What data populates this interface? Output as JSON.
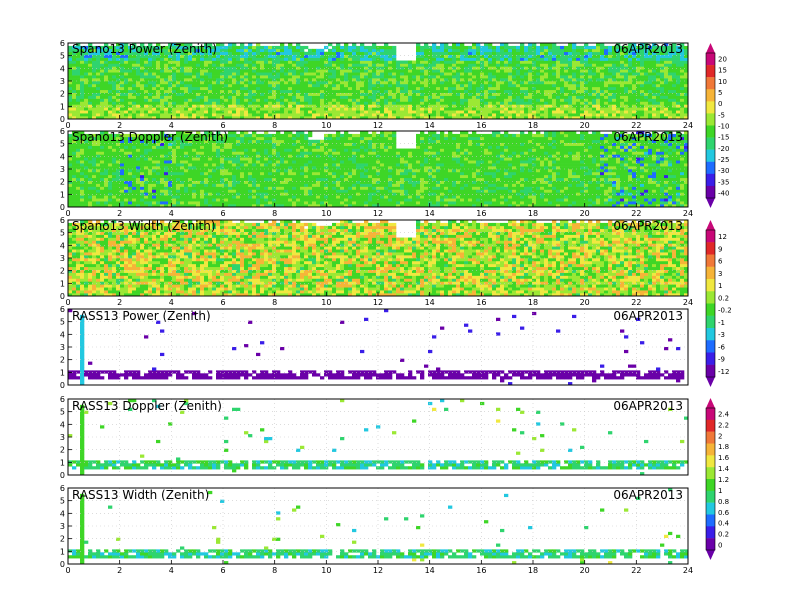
{
  "figure": {
    "panels": [
      {
        "title": "Spano13 Power (Zenith)",
        "date": "06APR2013"
      },
      {
        "title": "Spano13 Doppler (Zenith)",
        "date": "06APR2013"
      },
      {
        "title": "Spano13 Width (Zenith)",
        "date": "06APR2013"
      },
      {
        "title": "RASS13 Power (Zenith)",
        "date": "06APR2013"
      },
      {
        "title": "RASS13 Doppler (Zenith)",
        "date": "06APR2013"
      },
      {
        "title": "RASS13 Width (Zenith)",
        "date": "06APR2013"
      }
    ],
    "colorbars": [
      {
        "labels": [
          "20",
          "15",
          "10",
          "5",
          "0",
          "-5",
          "-10",
          "-15",
          "-20",
          "-25",
          "-30",
          "-35",
          "-40"
        ]
      },
      {
        "labels": [
          "12",
          "9",
          "6",
          "3",
          "1",
          "0.2",
          "-0.2",
          "-1",
          "-3",
          "-6",
          "-9",
          "-12"
        ]
      },
      {
        "labels": [
          "2.4",
          "2.2",
          "2",
          "1.8",
          "1.6",
          "1.4",
          "1.2",
          "1",
          "0.8",
          "0.6",
          "0.4",
          "0.2",
          "0"
        ]
      }
    ],
    "colors": {
      "scale": [
        "#6a00a8",
        "#3a1ee8",
        "#1e6cff",
        "#22c8e0",
        "#2fd46e",
        "#3ed626",
        "#9be834",
        "#f0e840",
        "#f6b438",
        "#f07838",
        "#e02828",
        "#c80878"
      ],
      "frame": "#000000",
      "grid": "#c8c8c8"
    }
  },
  "chart_data": [
    {
      "type": "heatmap",
      "title": "Spano13 Power (Zenith)",
      "annotation": "06APR2013",
      "xlim": [
        0,
        24
      ],
      "ylim": [
        0,
        6
      ],
      "xticks": [
        "0",
        "2",
        "4",
        "6",
        "8",
        "10",
        "12",
        "14",
        "16",
        "18",
        "20",
        "22",
        "24"
      ],
      "yticks": [
        "0",
        "1",
        "2",
        "3",
        "4",
        "5",
        "6"
      ],
      "colorbar": [
        "20",
        "15",
        "10",
        "5",
        "0",
        "-5",
        "-10",
        "-15",
        "-20",
        "-25",
        "-30",
        "-35",
        "-40"
      ],
      "description_values": {
        "dominant_range": [
          -20,
          -5
        ],
        "high_altitude_low_power": true
      }
    },
    {
      "type": "heatmap",
      "title": "Spano13 Doppler (Zenith)",
      "annotation": "06APR2013",
      "xlim": [
        0,
        24
      ],
      "ylim": [
        0,
        6
      ],
      "xticks": [
        "0",
        "2",
        "4",
        "6",
        "8",
        "10",
        "12",
        "14",
        "16",
        "18",
        "20",
        "22",
        "24"
      ],
      "yticks": [
        "0",
        "1",
        "2",
        "3",
        "4",
        "5",
        "6"
      ],
      "colorbar": [
        "20",
        "15",
        "10",
        "5",
        "0",
        "-5",
        "-10",
        "-15",
        "-20",
        "-25",
        "-30",
        "-35",
        "-40"
      ]
    },
    {
      "type": "heatmap",
      "title": "Spano13 Width (Zenith)",
      "annotation": "06APR2013",
      "xlim": [
        0,
        24
      ],
      "ylim": [
        0,
        6
      ],
      "xticks": [
        "0",
        "2",
        "4",
        "6",
        "8",
        "10",
        "12",
        "14",
        "16",
        "18",
        "20",
        "22",
        "24"
      ],
      "yticks": [
        "0",
        "1",
        "2",
        "3",
        "4",
        "5",
        "6"
      ],
      "colorbar": [
        "12",
        "9",
        "6",
        "3",
        "1",
        "0.2",
        "-0.2",
        "-1",
        "-3",
        "-6",
        "-9",
        "-12"
      ]
    },
    {
      "type": "heatmap",
      "title": "RASS13 Power (Zenith)",
      "annotation": "06APR2013",
      "xlim": [
        0,
        24
      ],
      "ylim": [
        0,
        6
      ],
      "yticks": [
        "0",
        "1",
        "2",
        "3",
        "4",
        "5",
        "6"
      ],
      "colorbar": [
        "12",
        "9",
        "6",
        "3",
        "1",
        "0.2",
        "-0.2",
        "-1",
        "-3",
        "-6",
        "-9",
        "-12"
      ]
    },
    {
      "type": "heatmap",
      "title": "RASS13 Doppler (Zenith)",
      "annotation": "06APR2013",
      "xlim": [
        0,
        24
      ],
      "ylim": [
        0,
        6
      ],
      "yticks": [
        "0",
        "1",
        "2",
        "3",
        "4",
        "5",
        "6"
      ],
      "colorbar": [
        "2.4",
        "2.2",
        "2",
        "1.8",
        "1.6",
        "1.4",
        "1.2",
        "1",
        "0.8",
        "0.6",
        "0.4",
        "0.2",
        "0"
      ]
    },
    {
      "type": "heatmap",
      "title": "RASS13 Width (Zenith)",
      "annotation": "06APR2013",
      "xlim": [
        0,
        24
      ],
      "ylim": [
        0,
        6
      ],
      "xticks": [
        "0",
        "2",
        "4",
        "6",
        "8",
        "10",
        "12",
        "14",
        "16",
        "18",
        "20",
        "22",
        "24"
      ],
      "yticks": [
        "0",
        "1",
        "2",
        "3",
        "4",
        "5",
        "6"
      ],
      "colorbar": [
        "2.4",
        "2.2",
        "2",
        "1.8",
        "1.6",
        "1.4",
        "1.2",
        "1",
        "0.8",
        "0.6",
        "0.4",
        "0.2",
        "0"
      ]
    }
  ]
}
